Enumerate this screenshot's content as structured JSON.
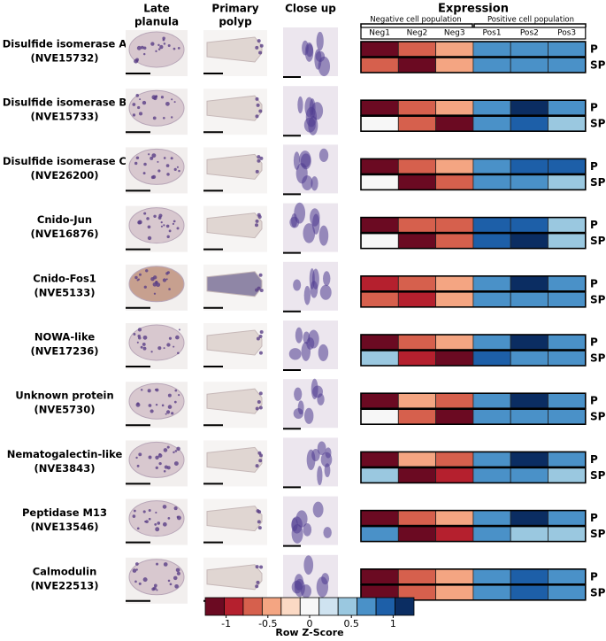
{
  "chart_data": {
    "type": "heatmap",
    "column_headers": [
      [
        "Late",
        "planula"
      ],
      [
        "Primary",
        "polyp"
      ],
      [
        "Close up"
      ]
    ],
    "expression_title": "Expression",
    "groups": [
      "Negative cell population",
      "Positive cell population"
    ],
    "columns": [
      "Neg1",
      "Neg2",
      "Neg3",
      "Pos1",
      "Pos2",
      "Pos3"
    ],
    "row_labels": [
      "P",
      "SP"
    ],
    "genes": [
      {
        "name": "Disulfide isomerase A",
        "id": "(NVE15732)",
        "values": [
          [
            -1.1,
            -0.6,
            -0.4,
            0.6,
            0.6,
            0.6
          ],
          [
            -0.6,
            -1.1,
            -0.4,
            0.6,
            0.6,
            0.6
          ]
        ]
      },
      {
        "name": "Disulfide isomerase B",
        "id": "(NVE15733)",
        "values": [
          [
            -1.1,
            -0.6,
            -0.4,
            0.6,
            1.1,
            0.6
          ],
          [
            -0.1,
            -0.6,
            -1.1,
            0.6,
            0.9,
            0.4
          ]
        ]
      },
      {
        "name": "Disulfide isomerase C",
        "id": "(NVE26200)",
        "values": [
          [
            -1.1,
            -0.6,
            -0.4,
            0.6,
            0.9,
            0.9
          ],
          [
            0.1,
            -1.1,
            -0.6,
            0.6,
            0.6,
            0.4
          ]
        ]
      },
      {
        "name": "Cnido-Jun",
        "id": "(NVE16876)",
        "values": [
          [
            -1.1,
            -0.6,
            -0.6,
            0.9,
            0.9,
            0.4
          ],
          [
            0.1,
            -1.1,
            -0.6,
            0.9,
            1.1,
            0.4
          ]
        ]
      },
      {
        "name": "Cnido-Fos1",
        "id": "(NVE5133)",
        "values": [
          [
            -0.9,
            -0.6,
            -0.4,
            0.6,
            1.1,
            0.6
          ],
          [
            -0.6,
            -0.9,
            -0.4,
            0.6,
            0.6,
            0.6
          ]
        ]
      },
      {
        "name": "NOWA-like",
        "id": "(NVE17236)",
        "values": [
          [
            -1.1,
            -0.6,
            -0.4,
            0.6,
            1.1,
            0.6
          ],
          [
            0.4,
            -0.9,
            -1.1,
            0.9,
            0.6,
            0.6
          ]
        ]
      },
      {
        "name": "Unknown protein",
        "id": "(NVE5730)",
        "values": [
          [
            -1.1,
            -0.4,
            -0.6,
            0.6,
            1.1,
            0.6
          ],
          [
            0.1,
            -0.6,
            -1.1,
            0.6,
            0.6,
            0.6
          ]
        ]
      },
      {
        "name": "Nematogalectin-like",
        "id": "(NVE3843)",
        "values": [
          [
            -1.1,
            -0.4,
            -0.6,
            0.6,
            1.1,
            0.6
          ],
          [
            0.4,
            -1.1,
            -0.9,
            0.6,
            0.6,
            0.4
          ]
        ]
      },
      {
        "name": "Peptidase M13",
        "id": "(NVE13546)",
        "values": [
          [
            -1.1,
            -0.6,
            -0.4,
            0.6,
            1.1,
            0.6
          ],
          [
            0.6,
            -1.1,
            -0.9,
            0.6,
            0.4,
            0.4
          ]
        ]
      },
      {
        "name": "Calmodulin",
        "id": "(NVE22513)",
        "values": [
          [
            -1.1,
            -0.6,
            -0.4,
            0.6,
            0.9,
            0.6
          ],
          [
            -1.1,
            -0.6,
            -0.4,
            0.6,
            0.9,
            0.6
          ]
        ]
      }
    ],
    "colorbar": {
      "title": "Row Z-Score",
      "zlim": [
        -1.25,
        1.25
      ],
      "ticks": [
        -1,
        -0.5,
        0,
        0.5,
        1
      ],
      "colors": [
        "#6b0a22",
        "#b5202e",
        "#d6604d",
        "#f4a582",
        "#fbd9c4",
        "#f7f7f7",
        "#cfe3f0",
        "#9ac8e0",
        "#4a91c8",
        "#1d5fa8",
        "#0b2d62"
      ]
    }
  }
}
